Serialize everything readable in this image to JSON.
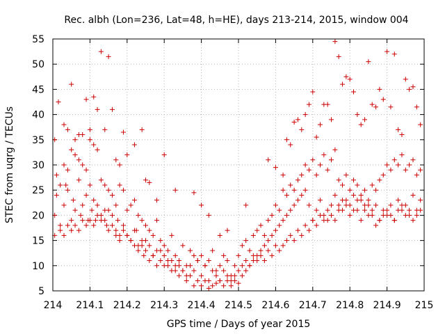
{
  "chart_data": {
    "type": "scatter",
    "title": "Rec. albh (Lon=236, Lat=48, h=HE), days 213-214, 2015, window 004",
    "xlabel": "GPS time / Days of year 2015",
    "ylabel": "STEC from uqrg / TECUs",
    "xlim": [
      214,
      215
    ],
    "ylim": [
      5,
      55
    ],
    "xticks": [
      214,
      214.1,
      214.2,
      214.3,
      214.4,
      214.5,
      214.6,
      214.7,
      214.8,
      214.9,
      215
    ],
    "xtick_labels": [
      "214",
      "214.1",
      "214.2",
      "214.3",
      "214.4",
      "214.5",
      "214.6",
      "214.7",
      "214.8",
      "214.9",
      "215"
    ],
    "yticks": [
      5,
      10,
      15,
      20,
      25,
      30,
      35,
      40,
      45,
      50,
      55
    ],
    "ytick_labels": [
      "5",
      "10",
      "15",
      "20",
      "25",
      "30",
      "35",
      "40",
      "45",
      "50",
      "55"
    ],
    "grid": true,
    "marker": "plus",
    "color": "#cc0000",
    "series": [
      {
        "x": [
          214.005,
          214.01,
          214.02,
          214.03,
          214.035,
          214.04,
          214.05,
          214.055,
          214.06,
          214.07,
          214.075,
          214.08,
          214.09,
          214.095,
          214.1,
          214.105,
          214.11,
          214.115,
          214.12,
          214.13,
          214.14,
          214.145,
          214.15,
          214.16,
          214.17,
          214.175,
          214.18,
          214.19,
          214.2,
          214.21,
          214.22,
          214.225,
          214.23,
          214.24,
          214.245,
          214.25,
          214.26,
          214.27,
          214.28,
          214.29,
          214.3,
          214.31,
          214.32,
          214.33,
          214.34,
          214.35,
          214.36,
          214.37,
          214.38,
          214.39,
          214.4,
          214.41,
          214.42,
          214.43,
          214.44,
          214.45,
          214.46,
          214.47,
          214.48,
          214.49,
          214.5,
          214.51,
          214.52,
          214.53,
          214.54,
          214.55,
          214.56,
          214.57,
          214.58,
          214.59,
          214.6,
          214.61,
          214.62,
          214.63,
          214.64,
          214.65,
          214.66,
          214.67,
          214.68,
          214.69,
          214.7,
          214.71,
          214.72,
          214.73,
          214.74,
          214.75,
          214.76,
          214.77,
          214.78,
          214.79,
          214.8,
          214.81,
          214.82,
          214.83,
          214.84,
          214.85,
          214.86,
          214.87,
          214.88,
          214.89,
          214.9,
          214.91,
          214.92,
          214.93,
          214.94,
          214.95,
          214.96,
          214.97,
          214.98,
          214.99
        ],
        "y": [
          20,
          24,
          18,
          22,
          26,
          25,
          19,
          23,
          21,
          27,
          20,
          22,
          24,
          19,
          26,
          21,
          23,
          19,
          22,
          20,
          19,
          18,
          21,
          20,
          17,
          19,
          16,
          18,
          16,
          15,
          14,
          17,
          13,
          14,
          12,
          15,
          11,
          12,
          10,
          13,
          10,
          11,
          9,
          10,
          8,
          9,
          7,
          8,
          6,
          7,
          6,
          7,
          5.5,
          6,
          6.5,
          7,
          6,
          7,
          6,
          7,
          6.5,
          8,
          9,
          10,
          11,
          12,
          13,
          14,
          15,
          16,
          17,
          18,
          19,
          20,
          21,
          22,
          23,
          24,
          25,
          22,
          19,
          21,
          23,
          20,
          19,
          22,
          24,
          21,
          23,
          22,
          20,
          21,
          23,
          19,
          21,
          22,
          20,
          18,
          19,
          21,
          20,
          22,
          19,
          23,
          21,
          22,
          20,
          24,
          21,
          23
        ]
      },
      {
        "x": [
          214.005,
          214.02,
          214.03,
          214.04,
          214.05,
          214.06,
          214.07,
          214.08,
          214.09,
          214.1,
          214.11,
          214.12,
          214.13,
          214.14,
          214.15,
          214.16,
          214.17,
          214.18,
          214.19,
          214.2,
          214.21,
          214.22,
          214.23,
          214.24,
          214.25,
          214.26,
          214.27,
          214.28,
          214.29,
          214.3,
          214.31,
          214.32,
          214.33,
          214.34,
          214.35,
          214.36,
          214.37,
          214.38,
          214.39,
          214.4,
          214.41,
          214.42,
          214.43,
          214.44,
          214.45,
          214.46,
          214.47,
          214.48,
          214.49,
          214.5,
          214.51,
          214.52,
          214.53,
          214.54,
          214.55,
          214.56,
          214.57,
          214.58,
          214.59,
          214.6,
          214.61,
          214.62,
          214.63,
          214.64,
          214.65,
          214.66,
          214.67,
          214.68,
          214.69,
          214.7,
          214.71,
          214.72,
          214.73,
          214.74,
          214.75,
          214.76,
          214.77,
          214.78,
          214.79,
          214.8,
          214.81,
          214.82,
          214.83,
          214.84,
          214.85,
          214.86,
          214.87,
          214.88,
          214.89,
          214.9,
          214.91,
          214.92,
          214.93,
          214.94,
          214.95,
          214.96,
          214.97,
          214.98,
          214.99
        ],
        "y": [
          16,
          17,
          16,
          18,
          17,
          18,
          17,
          19,
          18,
          19,
          18,
          20,
          19,
          21,
          17,
          18,
          16,
          15,
          17,
          16,
          15,
          17,
          14,
          15,
          13,
          14,
          12,
          13,
          11,
          12,
          10,
          11,
          9,
          10,
          9,
          8,
          10,
          9,
          11,
          8,
          10,
          7,
          9,
          8,
          7,
          9,
          8,
          7,
          8,
          9,
          10,
          11,
          10,
          12,
          11,
          12,
          11,
          13,
          12,
          14,
          13,
          14,
          15,
          16,
          15,
          17,
          16,
          18,
          17,
          19,
          18,
          20,
          19,
          21,
          20,
          19,
          22,
          21,
          23,
          22,
          24,
          21,
          23,
          22,
          20,
          21,
          22,
          19,
          20,
          21,
          20,
          19,
          21,
          22,
          20,
          21,
          19,
          20,
          21
        ]
      },
      {
        "x": [
          214.01,
          214.02,
          214.03,
          214.04,
          214.05,
          214.06,
          214.07,
          214.08,
          214.09,
          214.1,
          214.11,
          214.12,
          214.13,
          214.14,
          214.15,
          214.16,
          214.17,
          214.18,
          214.19,
          214.2,
          214.21,
          214.22,
          214.23,
          214.24,
          214.25,
          214.26,
          214.27,
          214.28,
          214.29,
          214.3,
          214.31,
          214.32,
          214.33,
          214.34,
          214.35,
          214.36,
          214.37,
          214.38,
          214.39,
          214.4,
          214.41,
          214.42,
          214.43,
          214.44,
          214.45,
          214.46,
          214.47,
          214.48,
          214.49,
          214.5,
          214.51,
          214.52,
          214.53,
          214.54,
          214.55,
          214.56,
          214.57,
          214.58,
          214.59,
          214.6,
          214.61,
          214.62,
          214.63,
          214.64,
          214.65,
          214.66,
          214.67,
          214.68,
          214.69,
          214.7,
          214.71,
          214.72,
          214.73,
          214.74,
          214.75,
          214.76,
          214.77,
          214.78,
          214.79,
          214.8,
          214.81,
          214.82,
          214.83,
          214.84,
          214.85,
          214.86,
          214.87,
          214.88,
          214.89,
          214.9,
          214.91,
          214.92,
          214.93,
          214.94,
          214.95,
          214.96,
          214.97,
          214.98,
          214.99
        ],
        "y": [
          28,
          26,
          30,
          29,
          33,
          32,
          31,
          30,
          29,
          35,
          34,
          33,
          27,
          26,
          25,
          24,
          22,
          26,
          25,
          21,
          22,
          23,
          20,
          19,
          18,
          17,
          16,
          19,
          15,
          14,
          13,
          16,
          12,
          11,
          14,
          10,
          13,
          12,
          11,
          12,
          10,
          11,
          13,
          9,
          10,
          12,
          11,
          8,
          10,
          12,
          14,
          15,
          13,
          16,
          17,
          18,
          16,
          19,
          20,
          22,
          21,
          25,
          24,
          26,
          25,
          27,
          28,
          30,
          29,
          31,
          28,
          30,
          32,
          29,
          31,
          33,
          27,
          26,
          28,
          25,
          27,
          26,
          24,
          25,
          23,
          26,
          25,
          27,
          28,
          30,
          29,
          31,
          30,
          32,
          29,
          30,
          31,
          28,
          29
        ]
      },
      {
        "x": [
          214.005,
          214.015,
          214.03,
          214.04,
          214.05,
          214.06,
          214.07,
          214.08,
          214.09,
          214.1,
          214.11,
          214.12,
          214.13,
          214.14,
          214.15,
          214.16,
          214.17,
          214.18,
          214.19,
          214.2,
          214.22,
          214.24,
          214.25,
          214.26,
          214.28,
          214.3,
          214.33,
          214.38,
          214.4,
          214.42,
          214.45,
          214.47,
          214.52,
          214.58,
          214.6,
          214.62,
          214.63,
          214.64,
          214.65,
          214.66,
          214.67,
          214.68,
          214.69,
          214.7,
          214.71,
          214.72,
          214.73,
          214.74,
          214.75,
          214.76,
          214.77,
          214.78,
          214.79,
          214.8,
          214.81,
          214.82,
          214.83,
          214.84,
          214.85,
          214.86,
          214.87,
          214.88,
          214.89,
          214.9,
          214.91,
          214.92,
          214.93,
          214.94,
          214.95,
          214.96,
          214.97,
          214.98,
          214.99
        ],
        "y": [
          35,
          42.5,
          38,
          37,
          46,
          35,
          36,
          36,
          43,
          37,
          43.5,
          41,
          52.5,
          37,
          51.5,
          41,
          31,
          30,
          36.5,
          32,
          34,
          37,
          27,
          26.5,
          23,
          32,
          25,
          24.5,
          22,
          20,
          16,
          17,
          22,
          31,
          29.5,
          28,
          35,
          34,
          38.5,
          39,
          37,
          40,
          42,
          44.5,
          35.5,
          38,
          42,
          42,
          39,
          54.5,
          51.5,
          46,
          47.5,
          47,
          44.5,
          40,
          38,
          39,
          50.5,
          42,
          41.5,
          45,
          43,
          52.5,
          41.5,
          52,
          37,
          36,
          47,
          45,
          45.5,
          41.5,
          38
        ]
      }
    ]
  }
}
